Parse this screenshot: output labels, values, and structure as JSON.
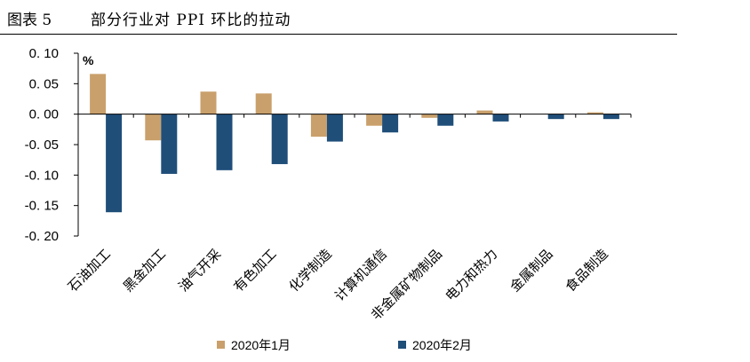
{
  "figure": {
    "label": "图表 5",
    "title": "部分行业对 PPI 环比的拉动"
  },
  "chart_data": {
    "type": "bar",
    "unit": "%",
    "categories": [
      "石油加工",
      "黑金加工",
      "油气开采",
      "有色加工",
      "化学制造",
      "计算机通信",
      "非金属矿物制品",
      "电力和热力",
      "金属制品",
      "食品制造"
    ],
    "series": [
      {
        "name": "2020年1月",
        "color": "#C9A06B",
        "values": [
          0.066,
          -0.043,
          0.037,
          0.034,
          -0.037,
          -0.019,
          -0.006,
          0.006,
          0.0,
          0.003
        ]
      },
      {
        "name": "2020年2月",
        "color": "#1F4E79",
        "values": [
          -0.161,
          -0.098,
          -0.092,
          -0.082,
          -0.045,
          -0.03,
          -0.019,
          -0.012,
          -0.008,
          -0.008
        ]
      }
    ],
    "yticks": [
      "0.10",
      "0.05",
      "0.00",
      "-0.05",
      "-0.10",
      "-0.15",
      "-0.20"
    ],
    "ylim": [
      -0.2,
      0.1
    ],
    "legend_position": "bottom"
  }
}
